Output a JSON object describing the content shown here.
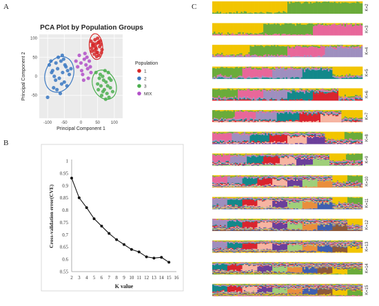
{
  "panels": {
    "a": "A",
    "b": "B",
    "c": "C"
  },
  "chart_data": [
    {
      "type": "scatter",
      "title": "PCA Plot by Population Groups",
      "xlabel": "Principal Component 1",
      "ylabel": "Principal Component 2",
      "xlim": [
        -125,
        125
      ],
      "ylim": [
        -110,
        110
      ],
      "x_ticks": [
        "-100",
        "-50",
        "0",
        "50",
        "100"
      ],
      "y_ticks": [
        "-50",
        "0",
        "50",
        "100"
      ],
      "legend_title": "Population",
      "legend_position": "right",
      "series": [
        {
          "name": "1",
          "color": "#d62728",
          "x": [
            30,
            42,
            52,
            38,
            60,
            46,
            56,
            33,
            48,
            63,
            40,
            54,
            36,
            50,
            44,
            58,
            32,
            47,
            41,
            61,
            53,
            35,
            49,
            45
          ],
          "y": [
            92,
            96,
            88,
            80,
            84,
            72,
            78,
            66,
            62,
            70,
            58,
            55,
            86,
            100,
            76,
            93,
            74,
            52,
            68,
            62,
            90,
            82,
            63,
            85
          ]
        },
        {
          "name": "2",
          "color": "#3a78c2",
          "x": [
            -95,
            -85,
            -75,
            -80,
            -70,
            -60,
            -55,
            -65,
            -45,
            -40,
            -50,
            -35,
            -90,
            -100,
            -72,
            -58,
            -48,
            -30,
            -82,
            -68,
            -52,
            -62,
            -76,
            -88,
            -42,
            -56
          ],
          "y": [
            30,
            15,
            35,
            0,
            20,
            40,
            10,
            -5,
            25,
            15,
            -15,
            5,
            40,
            -55,
            -35,
            -20,
            30,
            20,
            -30,
            50,
            45,
            -45,
            -10,
            10,
            -25,
            55
          ]
        },
        {
          "name": "3",
          "color": "#4caf50",
          "x": [
            45,
            55,
            65,
            75,
            85,
            60,
            70,
            80,
            90,
            50,
            95,
            58,
            68,
            78,
            88,
            62,
            72,
            82,
            52,
            74,
            84,
            66
          ],
          "y": [
            10,
            -5,
            0,
            -15,
            -5,
            -25,
            -35,
            -25,
            -10,
            -20,
            -40,
            5,
            -10,
            -45,
            -30,
            -50,
            15,
            10,
            -35,
            -60,
            -55,
            -40
          ]
        },
        {
          "name": "MIX",
          "color": "#b24fc8",
          "x": [
            0,
            10,
            20,
            -5,
            15,
            25,
            5,
            30,
            -10,
            12,
            22,
            2,
            18,
            -15,
            28,
            8
          ],
          "y": [
            35,
            45,
            20,
            55,
            30,
            40,
            5,
            10,
            25,
            60,
            -5,
            15,
            50,
            40,
            25,
            -10
          ]
        }
      ],
      "ellipses": [
        {
          "population": "1",
          "color": "#d62728"
        },
        {
          "population": "2",
          "color": "#3a78c2"
        },
        {
          "population": "3",
          "color": "#4caf50"
        }
      ],
      "grid": true
    },
    {
      "type": "line",
      "xlabel": "K value",
      "ylabel": "Cross-validation error(CVE)",
      "x": [
        2,
        3,
        4,
        5,
        6,
        7,
        8,
        9,
        10,
        11,
        12,
        13,
        14,
        15
      ],
      "values": [
        0.93,
        0.85,
        0.81,
        0.765,
        0.735,
        0.705,
        0.68,
        0.66,
        0.64,
        0.63,
        0.61,
        0.605,
        0.608,
        0.588
      ],
      "xlim": [
        2,
        16
      ],
      "ylim": [
        0.55,
        1.0
      ],
      "x_ticks": [
        "2",
        "3",
        "4",
        "5",
        "6",
        "7",
        "8",
        "9",
        "10",
        "11",
        "12",
        "13",
        "14",
        "15",
        "16"
      ],
      "y_ticks": [
        "0.55",
        "0.6",
        "0.65",
        "0.7",
        "0.75",
        "0.8",
        "0.85",
        "0.9",
        "0.95",
        "1"
      ],
      "color": "#111111",
      "grid": false
    },
    {
      "type": "area",
      "description_kind": "admixture-stacked-bars",
      "rows": [
        "K=2",
        "K=3",
        "K=4",
        "K=5",
        "K=6",
        "K=7",
        "K=8",
        "K=9",
        "K=10",
        "K=11",
        "K=12",
        "K=13",
        "K=14",
        "K=15"
      ],
      "palette": [
        "#f2c500",
        "#6aab3a",
        "#e8679a",
        "#9e8fbf",
        "#13888a",
        "#d9242e",
        "#f6b5a2",
        "#6b3f9a",
        "#9fcf7a",
        "#e98e3d",
        "#3f5fb0",
        "#8e5a3b"
      ],
      "individual_count": 100
    }
  ]
}
